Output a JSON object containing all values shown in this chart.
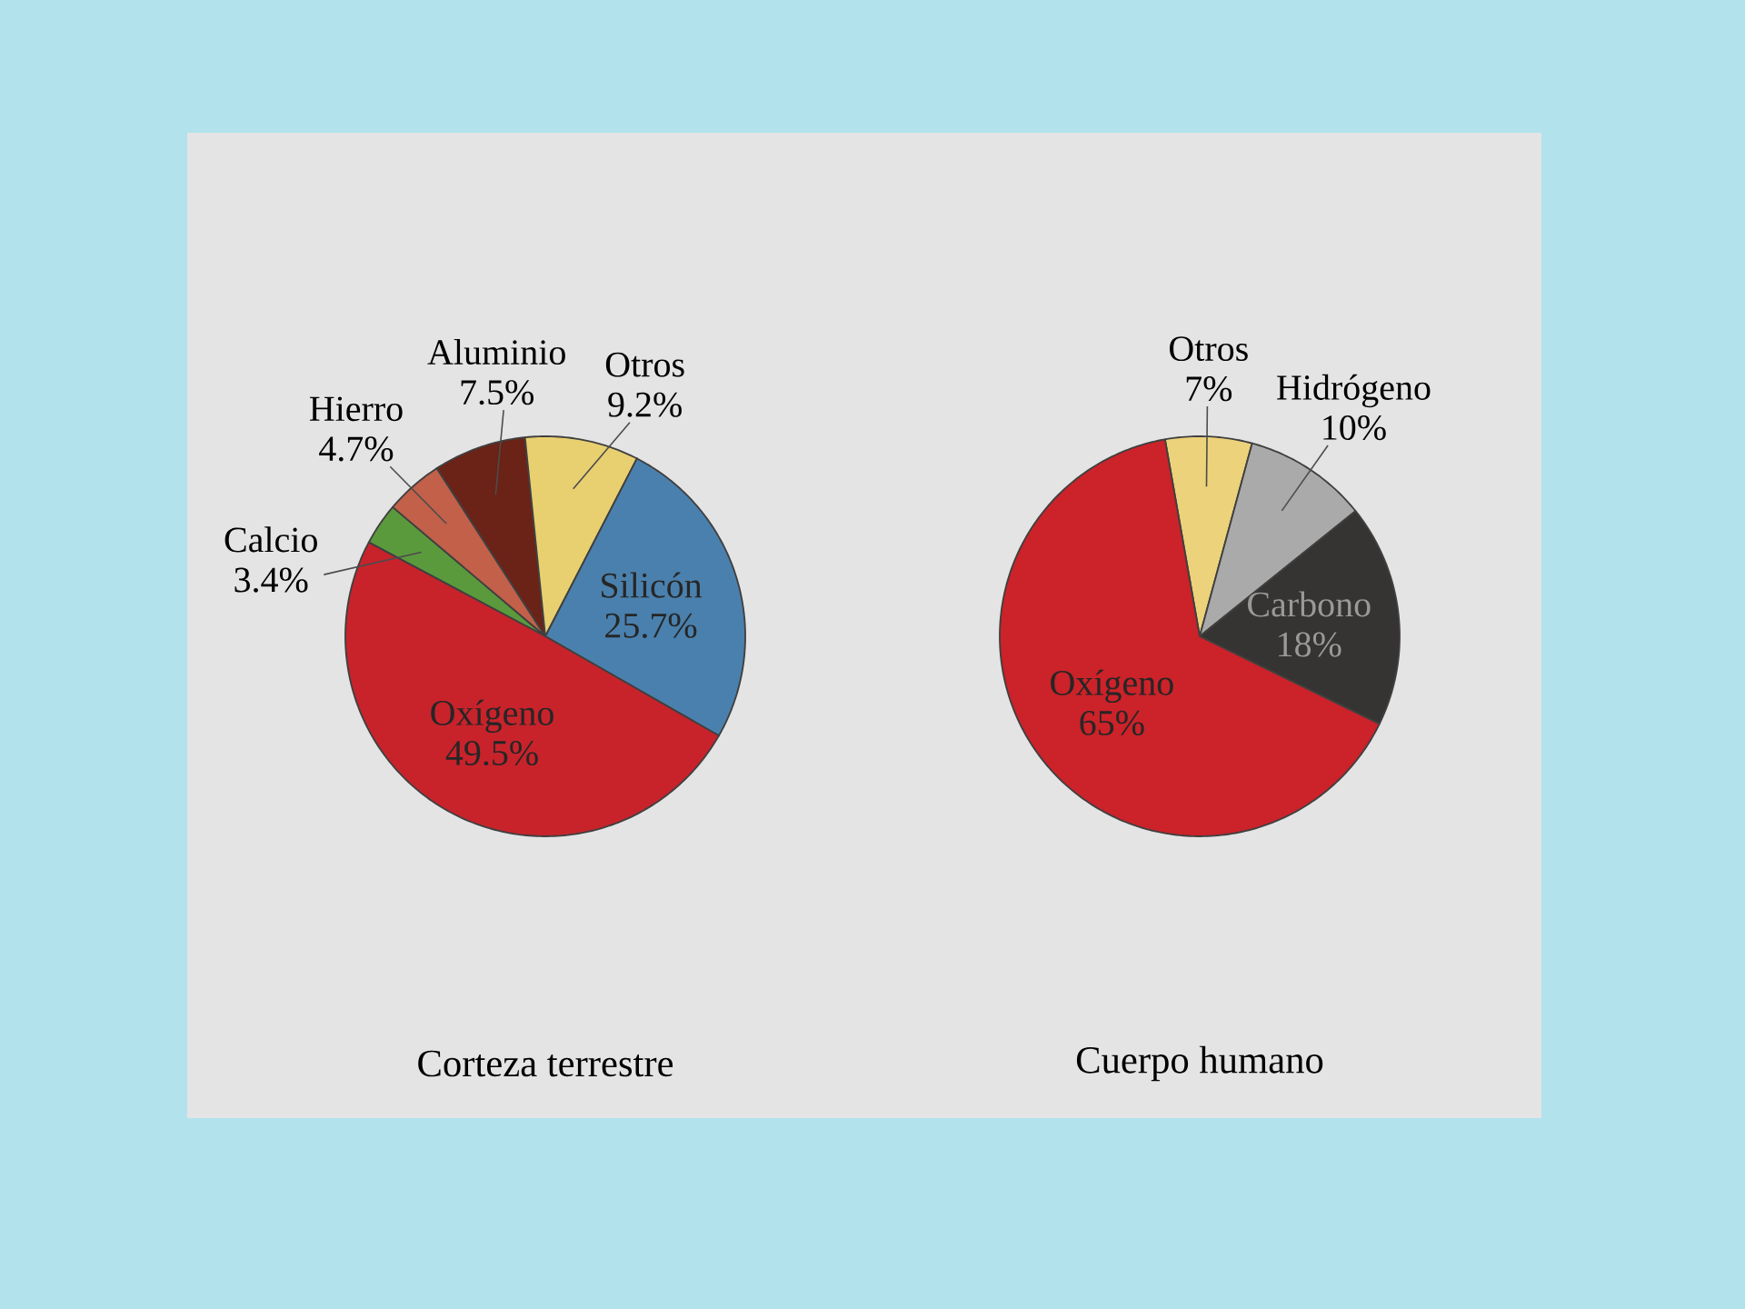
{
  "chart_data": [
    {
      "type": "pie",
      "title": "Corteza terrestre",
      "categories": [
        "Calcio",
        "Hierro",
        "Aluminio",
        "Otros",
        "Silicón",
        "Oxígeno"
      ],
      "values": [
        3.4,
        4.7,
        7.5,
        9.2,
        25.7,
        49.5
      ],
      "colors": [
        "#5b9a3c",
        "#c2604a",
        "#6b2217",
        "#e8cf70",
        "#4a80ad",
        "#c8232b"
      ],
      "value_labels": [
        "3.4%",
        "4.7%",
        "7.5%",
        "9.2%",
        "25.7%",
        "49.5%"
      ]
    },
    {
      "type": "pie",
      "title": "Cuerpo humano",
      "categories": [
        "Otros",
        "Hidrógeno",
        "Carbono",
        "Oxígeno"
      ],
      "values": [
        7,
        10,
        18,
        65
      ],
      "colors": [
        "#ecd27a",
        "#aaaaaa",
        "#363432",
        "#cc2229"
      ],
      "value_labels": [
        "7%",
        "10%",
        "18%",
        "65%"
      ]
    }
  ]
}
